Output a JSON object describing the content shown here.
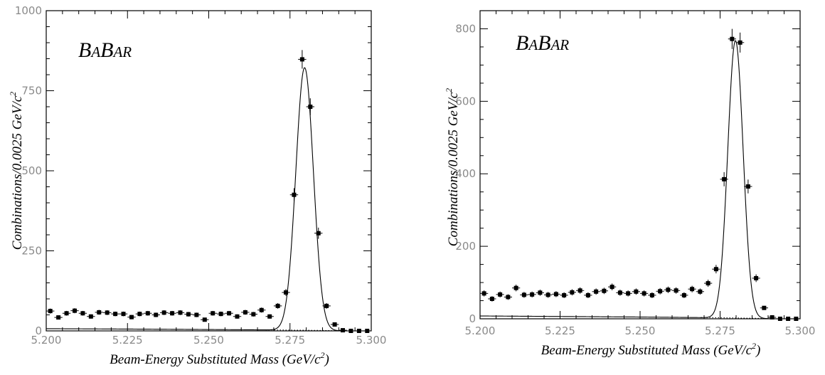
{
  "chart_data": [
    {
      "type": "scatter",
      "logo": "BABAR",
      "xlabel": "Beam-Energy Substituted Mass (GeV/c²)",
      "ylabel": "Combinations/0.0025 GeV/c²",
      "xlim": [
        5.2,
        5.3
      ],
      "ylim": [
        0,
        1000
      ],
      "x_ticks": [
        "5.200",
        "5.225",
        "5.250",
        "5.275",
        "5.300"
      ],
      "y_ticks": [
        "0",
        "250",
        "500",
        "750",
        "1000"
      ],
      "fit_curve": {
        "background_level": 55,
        "endpoint": 5.29,
        "peak_mean": 5.2795,
        "peak_sigma": 0.0027,
        "peak_amplitude": 820
      },
      "series": [
        {
          "x": [
            5.20125,
            5.20375,
            5.20625,
            5.20875,
            5.21125,
            5.21375,
            5.21625,
            5.21875,
            5.22125,
            5.22375,
            5.22625,
            5.22875,
            5.23125,
            5.23375,
            5.23625,
            5.23875,
            5.24125,
            5.24375,
            5.24625,
            5.24875,
            5.25125,
            5.25375,
            5.25625,
            5.25875,
            5.26125,
            5.26375,
            5.26625,
            5.26875,
            5.27125,
            5.27375,
            5.27625,
            5.27875,
            5.28125,
            5.28375,
            5.28625,
            5.28875,
            5.29125,
            5.29375,
            5.29625,
            5.29875
          ],
          "y": [
            62,
            42,
            55,
            63,
            55,
            45,
            58,
            57,
            53,
            53,
            43,
            53,
            55,
            50,
            57,
            55,
            57,
            52,
            50,
            35,
            55,
            53,
            55,
            45,
            58,
            52,
            65,
            45,
            78,
            120,
            425,
            848,
            700,
            305,
            78,
            20,
            2,
            0,
            0,
            0
          ]
        }
      ]
    },
    {
      "type": "scatter",
      "logo": "BABAR",
      "xlabel": "Beam-Energy Substituted Mass (GeV/c²)",
      "ylabel": "Combinations/0.0025 GeV/c²",
      "xlim": [
        5.2,
        5.3
      ],
      "ylim": [
        0,
        850
      ],
      "x_ticks": [
        "5.200",
        "5.225",
        "5.250",
        "5.275",
        "5.300"
      ],
      "y_ticks": [
        "0",
        "200",
        "400",
        "600",
        "800"
      ],
      "fit_curve": {
        "background_level": 62,
        "endpoint": 5.29,
        "peak_mean": 5.2798,
        "peak_sigma": 0.0024,
        "peak_amplitude": 765
      },
      "series": [
        {
          "x": [
            5.20125,
            5.20375,
            5.20625,
            5.20875,
            5.21125,
            5.21375,
            5.21625,
            5.21875,
            5.22125,
            5.22375,
            5.22625,
            5.22875,
            5.23125,
            5.23375,
            5.23625,
            5.23875,
            5.24125,
            5.24375,
            5.24625,
            5.24875,
            5.25125,
            5.25375,
            5.25625,
            5.25875,
            5.26125,
            5.26375,
            5.26625,
            5.26875,
            5.27125,
            5.27375,
            5.27625,
            5.27875,
            5.28125,
            5.28375,
            5.28625,
            5.28875,
            5.29125,
            5.29375,
            5.29625,
            5.29875
          ],
          "y": [
            70,
            55,
            67,
            60,
            85,
            66,
            67,
            72,
            66,
            68,
            65,
            73,
            78,
            65,
            75,
            77,
            88,
            72,
            70,
            75,
            70,
            65,
            76,
            80,
            78,
            65,
            82,
            75,
            98,
            137,
            385,
            772,
            762,
            365,
            112,
            30,
            4,
            0,
            0,
            0
          ]
        }
      ]
    }
  ]
}
